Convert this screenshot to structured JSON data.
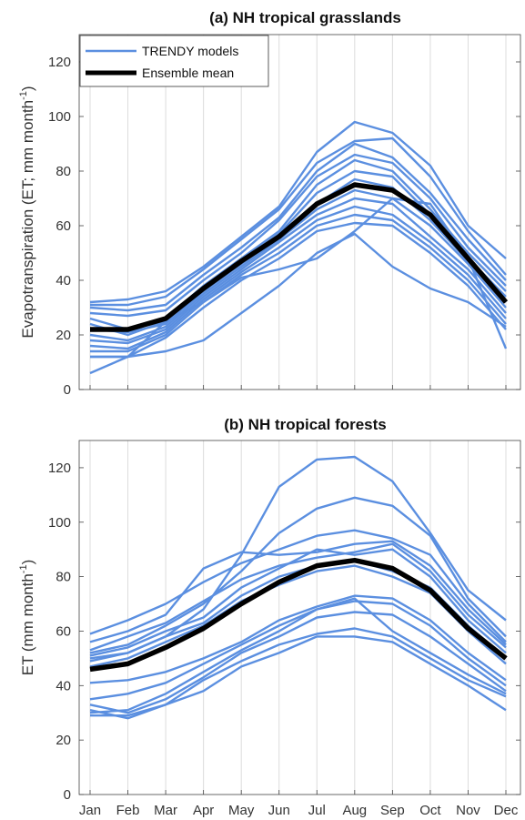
{
  "chart_data": [
    {
      "type": "line",
      "title": "(a) NH tropical grasslands",
      "ylabel_main": "Evapotranspiration (ET; mm month",
      "ylabel_sup": "-1",
      "ylabel_end": ")",
      "ylim": [
        0,
        130
      ],
      "yticks": [
        0,
        20,
        40,
        60,
        80,
        100,
        120
      ],
      "grid": "vertical",
      "legend": {
        "placement": "top-left",
        "entries": [
          {
            "label": "TRENDY models",
            "color": "#5b8fe0"
          },
          {
            "label": "Ensemble mean",
            "color": "#000000"
          }
        ]
      },
      "categories": [
        "Jan",
        "Feb",
        "Mar",
        "Apr",
        "May",
        "Jun",
        "Jul",
        "Aug",
        "Sep",
        "Oct",
        "Nov",
        "Dec"
      ],
      "model_color": "#5b8fe0",
      "mean_color": "#000000",
      "models": [
        {
          "values": [
            32,
            33,
            36,
            45,
            56,
            67,
            87,
            98,
            94,
            82,
            60,
            48
          ]
        },
        {
          "values": [
            31,
            31,
            34,
            44,
            55,
            66,
            83,
            91,
            92,
            78,
            58,
            42
          ]
        },
        {
          "values": [
            30,
            29,
            31,
            42,
            52,
            63,
            80,
            90,
            85,
            72,
            55,
            40
          ]
        },
        {
          "values": [
            28,
            27,
            29,
            40,
            50,
            62,
            78,
            86,
            83,
            70,
            52,
            38
          ]
        },
        {
          "values": [
            26,
            22,
            26,
            38,
            48,
            58,
            75,
            84,
            80,
            66,
            50,
            36
          ]
        },
        {
          "values": [
            24,
            20,
            25,
            37,
            47,
            57,
            72,
            80,
            78,
            64,
            48,
            34
          ]
        },
        {
          "values": [
            22,
            21,
            24,
            36,
            46,
            56,
            68,
            77,
            74,
            62,
            47,
            32
          ]
        },
        {
          "values": [
            20,
            18,
            23,
            35,
            45,
            55,
            66,
            73,
            70,
            60,
            46,
            30
          ]
        },
        {
          "values": [
            18,
            17,
            22,
            34,
            44,
            54,
            64,
            70,
            68,
            56,
            44,
            28
          ]
        },
        {
          "values": [
            16,
            15,
            21,
            33,
            43,
            52,
            62,
            67,
            64,
            54,
            42,
            26
          ]
        },
        {
          "values": [
            14,
            14,
            20,
            32,
            42,
            50,
            60,
            64,
            62,
            52,
            40,
            24
          ]
        },
        {
          "values": [
            12,
            12,
            19,
            30,
            40,
            48,
            58,
            61,
            60,
            50,
            38,
            22
          ]
        },
        {
          "values": [
            12,
            12,
            14,
            18,
            28,
            38,
            50,
            57,
            45,
            37,
            32,
            23
          ]
        },
        {
          "values": [
            6,
            12,
            25,
            32,
            41,
            44,
            48,
            58,
            70,
            68,
            48,
            15
          ]
        }
      ],
      "mean": [
        22,
        22,
        26,
        37,
        47,
        56,
        68,
        75,
        73,
        64,
        48,
        32
      ]
    },
    {
      "type": "line",
      "title": "(b) NH tropical forests",
      "ylabel_main": "ET (mm month",
      "ylabel_sup": "-1",
      "ylabel_end": ")",
      "ylim": [
        0,
        130
      ],
      "yticks": [
        0,
        20,
        40,
        60,
        80,
        100,
        120
      ],
      "grid": "vertical",
      "categories": [
        "Jan",
        "Feb",
        "Mar",
        "Apr",
        "May",
        "Jun",
        "Jul",
        "Aug",
        "Sep",
        "Oct",
        "Nov",
        "Dec"
      ],
      "model_color": "#5b8fe0",
      "mean_color": "#000000",
      "models": [
        {
          "values": [
            50,
            52,
            58,
            68,
            88,
            113,
            123,
            124,
            115,
            96,
            75,
            64
          ]
        },
        {
          "values": [
            52,
            55,
            62,
            70,
            82,
            96,
            105,
            109,
            106,
            95,
            72,
            58
          ]
        },
        {
          "values": [
            59,
            64,
            70,
            78,
            85,
            90,
            95,
            97,
            94,
            88,
            70,
            56
          ]
        },
        {
          "values": [
            56,
            60,
            66,
            83,
            89,
            88,
            89,
            92,
            93,
            84,
            68,
            55
          ]
        },
        {
          "values": [
            53,
            58,
            63,
            71,
            79,
            84,
            87,
            89,
            92,
            82,
            66,
            54
          ]
        },
        {
          "values": [
            51,
            54,
            60,
            65,
            76,
            83,
            90,
            88,
            90,
            80,
            64,
            52
          ]
        },
        {
          "values": [
            49,
            52,
            58,
            63,
            73,
            80,
            84,
            86,
            82,
            76,
            62,
            50
          ]
        },
        {
          "values": [
            47,
            50,
            56,
            62,
            71,
            77,
            82,
            84,
            80,
            74,
            60,
            48
          ]
        },
        {
          "values": [
            41,
            42,
            45,
            50,
            56,
            64,
            69,
            73,
            72,
            64,
            52,
            42
          ]
        },
        {
          "values": [
            35,
            37,
            41,
            48,
            55,
            62,
            68,
            71,
            70,
            62,
            50,
            40
          ]
        },
        {
          "values": [
            33,
            30,
            35,
            43,
            52,
            58,
            65,
            67,
            66,
            58,
            48,
            38
          ]
        },
        {
          "values": [
            30,
            31,
            37,
            45,
            53,
            60,
            68,
            72,
            60,
            52,
            44,
            37
          ]
        },
        {
          "values": [
            31,
            28,
            33,
            42,
            49,
            55,
            59,
            61,
            58,
            50,
            42,
            36
          ]
        },
        {
          "values": [
            29,
            29,
            33,
            38,
            47,
            52,
            58,
            58,
            56,
            48,
            40,
            31
          ]
        }
      ],
      "mean": [
        46,
        48,
        54,
        61,
        70,
        78,
        84,
        86,
        83,
        75,
        61,
        50
      ]
    }
  ]
}
